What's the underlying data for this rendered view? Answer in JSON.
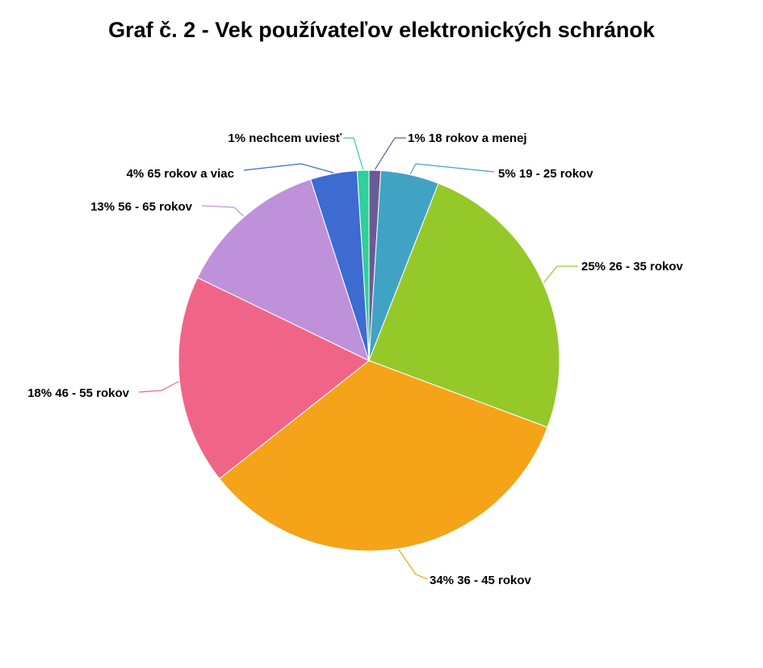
{
  "title": "Graf č. 2 - Vek používateľov elektronických schránok",
  "chart_data": {
    "type": "pie",
    "title": "Graf č. 2 - Vek používateľov elektronických schránok",
    "slices": [
      {
        "label": "18 rokov a menej",
        "value": 1,
        "text": "1% 18 rokov a menej",
        "color": "#6b5b95"
      },
      {
        "label": "19 - 25 rokov",
        "value": 5,
        "text": "5% 19 - 25 rokov",
        "color": "#41a3c3"
      },
      {
        "label": "26 - 35 rokov",
        "value": 25,
        "text": "25% 26 - 35 rokov",
        "color": "#95c929"
      },
      {
        "label": "36 - 45 rokov",
        "value": 34,
        "text": "34% 36 - 45 rokov",
        "color": "#f5a319"
      },
      {
        "label": "46 - 55 rokov",
        "value": 18,
        "text": "18% 46 - 55 rokov",
        "color": "#f06587"
      },
      {
        "label": "56 - 65 rokov",
        "value": 13,
        "text": "13% 56 - 65 rokov",
        "color": "#bf91da"
      },
      {
        "label": "65 rokov a viac",
        "value": 4,
        "text": "4% 65 rokov a viac",
        "color": "#3d6bd0"
      },
      {
        "label": "nechcem uviesť",
        "value": 1,
        "text": "1% nechcem uviesť",
        "color": "#2fd09a"
      }
    ]
  }
}
